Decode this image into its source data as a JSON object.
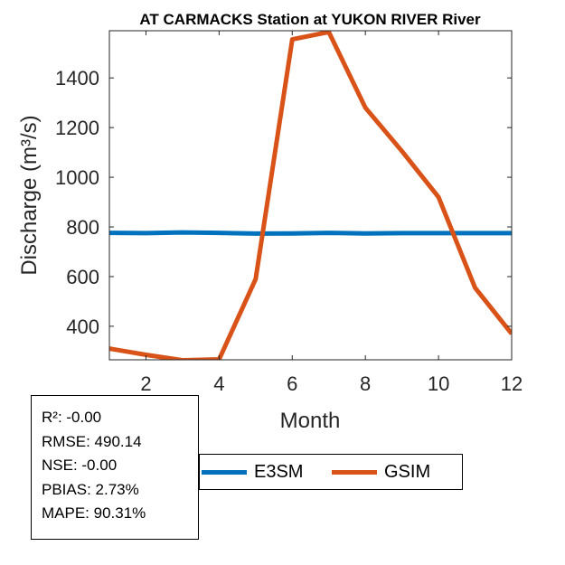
{
  "chart_data": {
    "type": "line",
    "title": "AT CARMACKS  Station at  YUKON RIVER  River",
    "xlabel": "Month",
    "ylabel": "Discharge (m³/s)",
    "xlim": [
      1,
      12
    ],
    "ylim": [
      265,
      1590
    ],
    "x_ticks": [
      2,
      4,
      6,
      8,
      10,
      12
    ],
    "y_ticks": [
      400,
      600,
      800,
      1000,
      1200,
      1400
    ],
    "x": [
      1,
      2,
      3,
      4,
      5,
      6,
      7,
      8,
      9,
      10,
      11,
      12
    ],
    "series": [
      {
        "name": "E3SM",
        "color": "#0072BD",
        "values": [
          776,
          775,
          778,
          776,
          773,
          774,
          776,
          774,
          775,
          775,
          775,
          775
        ]
      },
      {
        "name": "GSIM",
        "color": "#D95319",
        "values": [
          310,
          285,
          263,
          267,
          590,
          1555,
          1585,
          1280,
          1105,
          920,
          555,
          370
        ]
      }
    ],
    "legend_position": "bottom",
    "grid": false
  },
  "stats": [
    "R²: -0.00",
    "RMSE: 490.14",
    "NSE: -0.00",
    "PBIAS: 2.73%",
    "MAPE: 90.31%"
  ]
}
